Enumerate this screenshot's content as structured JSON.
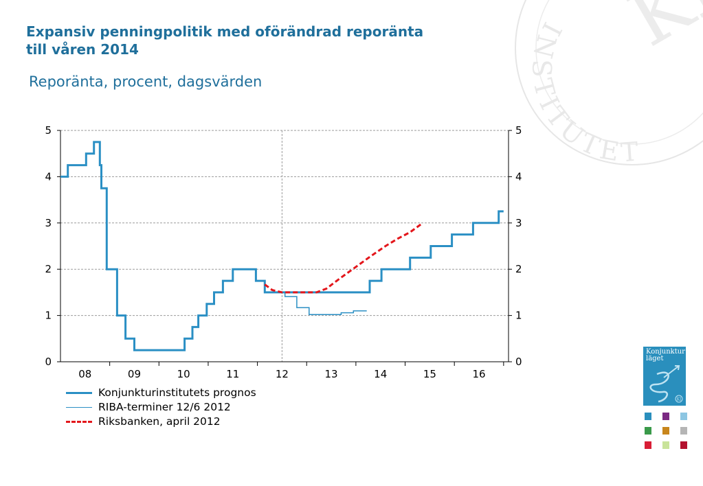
{
  "title_line1": "Expansiv penningpolitik med oförändrad reporänta",
  "title_line2": "till våren 2014",
  "subtitle": "Reporänta, procent, dagsvärden",
  "logo": {
    "line1": "Konjunktur",
    "line2": "läget",
    "seal": "KI"
  },
  "watermark": {
    "text": "INSTITUTET",
    "emblem": "KI"
  },
  "colors": {
    "prognos": "#2a8fc4",
    "riba": "#2a8fc4",
    "riksbank": "#e3161b",
    "title": "#1f6f9b",
    "grid": "#9a9a9a"
  },
  "chart_data": {
    "type": "line",
    "x_unit": "year",
    "xlim": [
      2007.5,
      2016.6
    ],
    "ylim": [
      0,
      5
    ],
    "yticks": [
      0,
      1,
      2,
      3,
      4,
      5
    ],
    "categories": [
      "08",
      "09",
      "10",
      "11",
      "12",
      "13",
      "14",
      "15",
      "16"
    ],
    "vline_x": 2012.0,
    "grid": "horizontal-dashed",
    "legend_placement": "bottom-left",
    "series": [
      {
        "name": "Konjunkturinstitutets prognos",
        "style": "thick",
        "points": [
          [
            2007.5,
            4.0
          ],
          [
            2007.65,
            4.0
          ],
          [
            2007.65,
            4.25
          ],
          [
            2008.02,
            4.25
          ],
          [
            2008.02,
            4.5
          ],
          [
            2008.18,
            4.5
          ],
          [
            2008.18,
            4.75
          ],
          [
            2008.3,
            4.75
          ],
          [
            2008.3,
            4.25
          ],
          [
            2008.33,
            4.25
          ],
          [
            2008.33,
            3.75
          ],
          [
            2008.44,
            3.75
          ],
          [
            2008.44,
            2.0
          ],
          [
            2008.65,
            2.0
          ],
          [
            2008.65,
            1.0
          ],
          [
            2008.82,
            1.0
          ],
          [
            2008.82,
            0.5
          ],
          [
            2009.0,
            0.5
          ],
          [
            2009.0,
            0.25
          ],
          [
            2010.02,
            0.25
          ],
          [
            2010.02,
            0.5
          ],
          [
            2010.18,
            0.5
          ],
          [
            2010.18,
            0.75
          ],
          [
            2010.3,
            0.75
          ],
          [
            2010.3,
            1.0
          ],
          [
            2010.47,
            1.0
          ],
          [
            2010.47,
            1.25
          ],
          [
            2010.62,
            1.25
          ],
          [
            2010.62,
            1.5
          ],
          [
            2010.8,
            1.5
          ],
          [
            2010.8,
            1.75
          ],
          [
            2011.0,
            1.75
          ],
          [
            2011.0,
            2.0
          ],
          [
            2011.47,
            2.0
          ],
          [
            2011.47,
            1.75
          ],
          [
            2011.65,
            1.75
          ],
          [
            2011.65,
            1.5
          ],
          [
            2013.78,
            1.5
          ],
          [
            2013.78,
            1.75
          ],
          [
            2014.02,
            1.75
          ],
          [
            2014.02,
            2.0
          ],
          [
            2014.6,
            2.0
          ],
          [
            2014.6,
            2.25
          ],
          [
            2015.02,
            2.25
          ],
          [
            2015.02,
            2.5
          ],
          [
            2015.45,
            2.5
          ],
          [
            2015.45,
            2.75
          ],
          [
            2015.88,
            2.75
          ],
          [
            2015.88,
            3.0
          ],
          [
            2016.4,
            3.0
          ],
          [
            2016.4,
            3.25
          ],
          [
            2016.5,
            3.25
          ]
        ]
      },
      {
        "name": "RIBA-terminer 12/6 2012",
        "style": "thin",
        "points": [
          [
            2012.0,
            1.5
          ],
          [
            2012.06,
            1.5
          ],
          [
            2012.06,
            1.41
          ],
          [
            2012.3,
            1.41
          ],
          [
            2012.3,
            1.17
          ],
          [
            2012.55,
            1.17
          ],
          [
            2012.55,
            1.02
          ],
          [
            2013.2,
            1.02
          ],
          [
            2013.2,
            1.06
          ],
          [
            2013.45,
            1.06
          ],
          [
            2013.45,
            1.1
          ],
          [
            2013.72,
            1.1
          ]
        ]
      },
      {
        "name": "Riksbanken, april 2012",
        "style": "dashed",
        "points": [
          [
            2011.65,
            1.67
          ],
          [
            2011.8,
            1.55
          ],
          [
            2012.0,
            1.5
          ],
          [
            2012.7,
            1.5
          ],
          [
            2012.9,
            1.58
          ],
          [
            2013.2,
            1.82
          ],
          [
            2013.5,
            2.05
          ],
          [
            2013.8,
            2.28
          ],
          [
            2014.1,
            2.5
          ],
          [
            2014.35,
            2.66
          ],
          [
            2014.6,
            2.8
          ],
          [
            2014.82,
            2.97
          ]
        ]
      }
    ]
  }
}
